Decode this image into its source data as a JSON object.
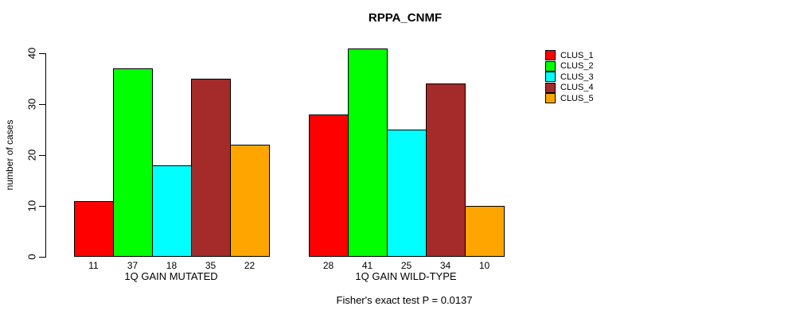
{
  "title": "RPPA_CNMF",
  "caption": "Fisher's exact test P = 0.0137",
  "chart_data": {
    "type": "bar",
    "title": "RPPA_CNMF",
    "ylabel": "number of cases",
    "xlabel": "",
    "ylim": [
      0,
      41
    ],
    "yticks": [
      0,
      10,
      20,
      30,
      40
    ],
    "grid": false,
    "legend_position": "right",
    "bar_value_labels_shown": true,
    "groups": [
      {
        "label": "1Q GAIN MUTATED",
        "values": [
          11,
          37,
          18,
          35,
          22
        ]
      },
      {
        "label": "1Q GAIN WILD-TYPE",
        "values": [
          28,
          41,
          25,
          34,
          10
        ]
      }
    ],
    "series": [
      {
        "name": "CLUS_1",
        "color": "#FF0000",
        "values": [
          11,
          28
        ]
      },
      {
        "name": "CLUS_2",
        "color": "#00FF00",
        "values": [
          37,
          41
        ]
      },
      {
        "name": "CLUS_3",
        "color": "#00FFFF",
        "values": [
          18,
          25
        ]
      },
      {
        "name": "CLUS_4",
        "color": "#A52A2A",
        "values": [
          35,
          34
        ]
      },
      {
        "name": "CLUS_5",
        "color": "#FFA500",
        "values": [
          22,
          10
        ]
      }
    ],
    "caption": "Fisher's exact test P = 0.0137"
  }
}
